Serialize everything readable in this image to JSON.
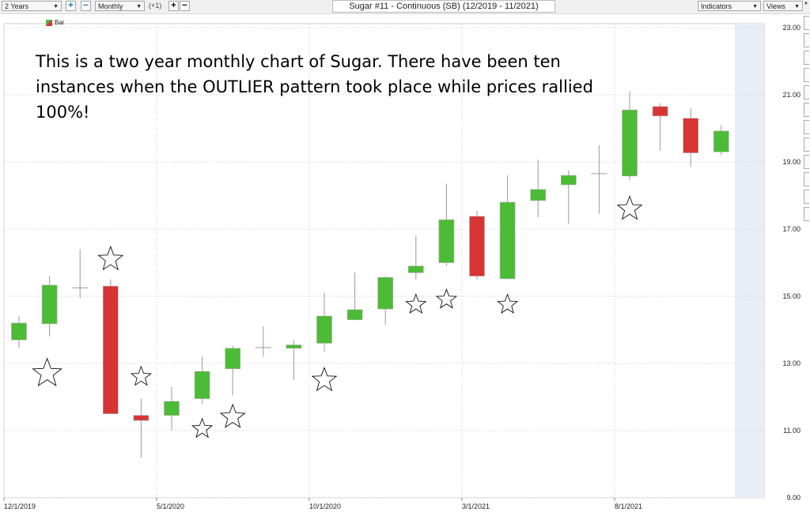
{
  "toolbar": {
    "range": "2 Years",
    "interval": "Monthly",
    "offset": "(+1)",
    "title": "Sugar #11 - Continuous (SB) (12/2019 - 11/2021)",
    "indicators": "Indicators",
    "views": "Views",
    "views_mark": "*"
  },
  "legend": {
    "label": "Bar"
  },
  "annotation": "This is a two year monthly chart of Sugar.  There have been ten instances when the OUTLIER pattern took place while prices rallied 100%!",
  "colors": {
    "up": "#4cbb35",
    "down": "#d83434",
    "grid": "#dcdcdc",
    "forecast_shade": "#e8eef6"
  },
  "chart_data": {
    "type": "candlestick",
    "title": "Sugar #11 - Continuous (SB) (12/2019 - 11/2021)",
    "ylim": [
      9,
      23
    ],
    "y_ticks": [
      "23.00",
      "21.00",
      "19.00",
      "17.00",
      "15.00",
      "13.00",
      "11.00",
      "9.00"
    ],
    "y_tick_values": [
      23,
      21,
      19,
      17,
      15,
      13,
      11,
      9
    ],
    "x_tick_labels": [
      "12/1/2019",
      "5/1/2020",
      "10/1/2020",
      "3/1/2021",
      "8/1/2021"
    ],
    "x_tick_indices": [
      0,
      5,
      10,
      15,
      20
    ],
    "grid": true,
    "months": [
      "12/2019",
      "1/2020",
      "2/2020",
      "3/2020",
      "4/2020",
      "5/2020",
      "6/2020",
      "7/2020",
      "8/2020",
      "9/2020",
      "10/2020",
      "11/2020",
      "12/2020",
      "1/2021",
      "2/2021",
      "3/2021",
      "4/2021",
      "5/2021",
      "6/2021",
      "7/2021",
      "8/2021",
      "9/2021",
      "10/2021",
      "11/2021"
    ],
    "ohlc": [
      [
        13.7,
        14.4,
        13.45,
        14.2
      ],
      [
        14.18,
        15.6,
        13.8,
        15.33
      ],
      [
        15.25,
        16.4,
        14.95,
        15.22
      ],
      [
        15.3,
        15.5,
        11.5,
        11.5
      ],
      [
        11.45,
        11.95,
        10.2,
        11.3
      ],
      [
        11.45,
        12.3,
        11.0,
        11.87
      ],
      [
        11.95,
        13.2,
        11.8,
        12.76
      ],
      [
        12.84,
        13.52,
        12.05,
        13.45
      ],
      [
        13.47,
        14.1,
        13.2,
        13.47
      ],
      [
        13.45,
        13.7,
        12.5,
        13.55
      ],
      [
        13.6,
        15.1,
        13.35,
        14.41
      ],
      [
        14.3,
        15.7,
        14.3,
        14.6
      ],
      [
        14.62,
        15.6,
        14.15,
        15.56
      ],
      [
        15.7,
        16.8,
        15.5,
        15.9
      ],
      [
        16.0,
        18.35,
        15.9,
        17.28
      ],
      [
        17.38,
        17.55,
        15.5,
        15.6
      ],
      [
        15.52,
        18.6,
        15.5,
        17.8
      ],
      [
        17.85,
        19.07,
        17.35,
        18.18
      ],
      [
        18.32,
        18.75,
        17.16,
        18.6
      ],
      [
        18.65,
        19.5,
        17.45,
        18.65
      ],
      [
        18.58,
        21.1,
        18.45,
        20.55
      ],
      [
        20.65,
        20.75,
        19.33,
        20.37
      ],
      [
        20.3,
        20.6,
        18.85,
        19.27
      ],
      [
        19.3,
        20.1,
        19.2,
        19.92
      ]
    ],
    "star_markers": [
      {
        "month_index": 1,
        "price": 12.7,
        "size": "large"
      },
      {
        "month_index": 3,
        "price": 16.1,
        "size": "medium"
      },
      {
        "month_index": 4,
        "price": 12.6,
        "size": "small"
      },
      {
        "month_index": 6,
        "price": 11.05,
        "size": "small"
      },
      {
        "month_index": 7,
        "price": 11.4,
        "size": "medium"
      },
      {
        "month_index": 10,
        "price": 12.5,
        "size": "medium"
      },
      {
        "month_index": 13,
        "price": 14.75,
        "size": "small"
      },
      {
        "month_index": 14,
        "price": 14.9,
        "size": "small"
      },
      {
        "month_index": 16,
        "price": 14.75,
        "size": "small"
      },
      {
        "month_index": 20,
        "price": 17.6,
        "size": "medium"
      }
    ]
  }
}
